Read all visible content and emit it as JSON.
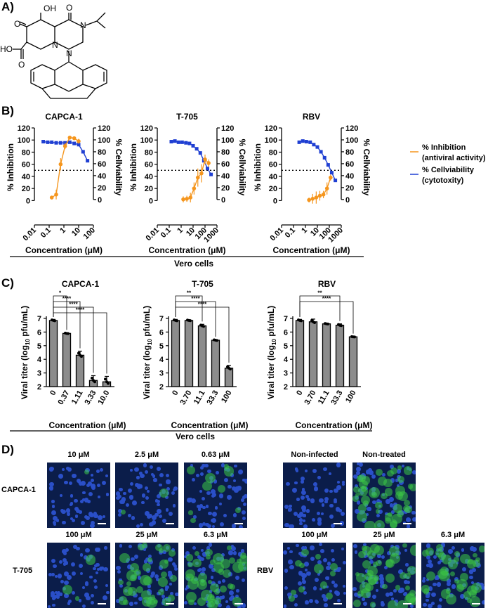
{
  "panels": {
    "a": "A)",
    "b": "B)",
    "c": "C)",
    "d": "D)"
  },
  "structure": {
    "labels": {
      "oh": "OH",
      "o_top": "O",
      "o_left": "O",
      "n_top": "N",
      "n_mid": "N",
      "n_bot": "N",
      "ho": "HO",
      "o_acid": "O"
    }
  },
  "colors": {
    "inhibition": "#F5961E",
    "viability": "#1F3FD2",
    "bar": "#8C8C8C"
  },
  "panel_b": {
    "legend": [
      {
        "line1": "% Inhibition",
        "line2": "(antiviral activity)",
        "color": "#F5961E"
      },
      {
        "line1": "% Cellviability",
        "line2": "(cytotoxity)",
        "color": "#1F3FD2"
      }
    ],
    "footer": "Vero cells"
  },
  "chart_data": [
    {
      "type": "scatter",
      "title": "CAPCA-1",
      "xlabel": "Concentration (μM)",
      "ylabel": "% Inhibition",
      "y2label": "% Cellviability",
      "x_scale": "log",
      "xlim": [
        0.01,
        100
      ],
      "ylim": [
        -10,
        120
      ],
      "y2lim": [
        -12,
        120
      ],
      "xticks": [
        "0.01",
        "0.1",
        "1",
        "10",
        "100"
      ],
      "yticks": [
        0,
        20,
        40,
        60,
        80,
        100,
        120
      ],
      "y2ticks": [
        0,
        20,
        40,
        60,
        80,
        100,
        120
      ],
      "reference_line": 50,
      "series": [
        {
          "name": "% Inhibition",
          "x": [
            0.15,
            0.3,
            0.6,
            1.2,
            2.5,
            5,
            10
          ],
          "y": [
            5,
            10,
            60,
            90,
            104,
            103,
            98
          ],
          "err": [
            2,
            8,
            10,
            5,
            3,
            3,
            4
          ]
        },
        {
          "name": "% Cellviability",
          "x": [
            0.04,
            0.08,
            0.15,
            0.3,
            0.6,
            1.2,
            2.5,
            5,
            10,
            20,
            40
          ],
          "y": [
            97,
            96,
            96,
            95,
            95,
            95,
            96,
            94,
            92,
            80,
            65
          ],
          "err": []
        }
      ]
    },
    {
      "type": "scatter",
      "title": "T-705",
      "xlabel": "Concentration (μM)",
      "ylabel": "% Inhibition",
      "y2label": "% Cellviability",
      "x_scale": "log",
      "xlim": [
        0.01,
        1000
      ],
      "ylim": [
        -10,
        120
      ],
      "y2lim": [
        -12,
        120
      ],
      "xticks": [
        "0.01",
        "0.1",
        "1",
        "10",
        "100",
        "1000"
      ],
      "yticks": [
        0,
        20,
        40,
        60,
        80,
        100,
        120
      ],
      "y2ticks": [
        0,
        20,
        40,
        60,
        80,
        100,
        120
      ],
      "reference_line": 50,
      "series": [
        {
          "name": "% Inhibition",
          "x": [
            1.5,
            3,
            6,
            12,
            25,
            50,
            100,
            200
          ],
          "y": [
            2,
            3,
            5,
            20,
            38,
            45,
            68,
            62
          ],
          "err": [
            5,
            5,
            8,
            10,
            15,
            15,
            8,
            6
          ]
        },
        {
          "name": "% Cellviability",
          "x": [
            0.15,
            0.3,
            0.6,
            1.2,
            2.5,
            5,
            10,
            20,
            40,
            80,
            160,
            320
          ],
          "y": [
            97,
            98,
            96,
            96,
            95,
            94,
            90,
            85,
            78,
            65,
            52,
            42
          ],
          "err": []
        }
      ]
    },
    {
      "type": "scatter",
      "title": "RBV",
      "xlabel": "Concentration (μM)",
      "ylabel": "% Inhibition",
      "y2label": "% Cellviability",
      "x_scale": "log",
      "xlim": [
        0.01,
        1000
      ],
      "ylim": [
        -10,
        120
      ],
      "y2lim": [
        -12,
        120
      ],
      "xticks": [
        "0.01",
        "0.1",
        "1",
        "10",
        "100",
        "1000"
      ],
      "yticks": [
        0,
        20,
        40,
        60,
        80,
        100,
        120
      ],
      "y2ticks": [
        0,
        20,
        40,
        60,
        80,
        100,
        120
      ],
      "reference_line": 50,
      "series": [
        {
          "name": "% Inhibition",
          "x": [
            2,
            4,
            8,
            16,
            32,
            64,
            128
          ],
          "y": [
            1,
            3,
            5,
            8,
            10,
            20,
            38
          ],
          "err": [
            4,
            8,
            10,
            8,
            6,
            10,
            5
          ]
        },
        {
          "name": "% Cellviability",
          "x": [
            0.3,
            0.6,
            1.2,
            2.5,
            5,
            10,
            20,
            40,
            80,
            160,
            320
          ],
          "y": [
            96,
            98,
            97,
            96,
            92,
            88,
            80,
            70,
            58,
            45,
            32
          ],
          "err": []
        }
      ]
    },
    {
      "type": "bar",
      "title": "CAPCA-1",
      "xlabel": "Concentration (μM)",
      "ylabel": "Viral titer (log10 pfu/mL)",
      "ylabel_parts": [
        "Viral titer (log",
        "10",
        " pfu/mL)"
      ],
      "categories": [
        "0",
        "0.37",
        "1.11",
        "3.33",
        "10.0"
      ],
      "values": [
        6.85,
        5.9,
        4.3,
        2.45,
        2.35
      ],
      "err": [
        0.08,
        0.05,
        0.3,
        0.35,
        0.4
      ],
      "ylim": [
        2,
        7
      ],
      "yticks": [
        2,
        3,
        4,
        5,
        6,
        7
      ],
      "significance": [
        {
          "from": 0,
          "to": 1,
          "label": "*"
        },
        {
          "from": 0,
          "to": 2,
          "label": "****"
        },
        {
          "from": 0,
          "to": 3,
          "label": "****"
        },
        {
          "from": 0,
          "to": 4,
          "label": "****"
        }
      ]
    },
    {
      "type": "bar",
      "title": "T-705",
      "xlabel": "Concentration (μM)",
      "ylabel": "Viral titer (log10 pfu/mL)",
      "ylabel_parts": [
        "Viral titer (log",
        "10",
        " pfu/mL)"
      ],
      "categories": [
        "0",
        "3.70",
        "11.1",
        "33.3",
        "100"
      ],
      "values": [
        6.85,
        6.85,
        6.45,
        5.4,
        3.35
      ],
      "err": [
        0.08,
        0.05,
        0.12,
        0.05,
        0.2
      ],
      "ylim": [
        2,
        7
      ],
      "yticks": [
        2,
        3,
        4,
        5,
        6,
        7
      ],
      "significance": [
        {
          "from": 0,
          "to": 2,
          "label": "**"
        },
        {
          "from": 0,
          "to": 3,
          "label": "****"
        },
        {
          "from": 0,
          "to": 4,
          "label": "****"
        }
      ]
    },
    {
      "type": "bar",
      "title": "RBV",
      "xlabel": "Concentration (μM)",
      "ylabel": "Viral titer (log10 pfu/mL)",
      "ylabel_parts": [
        "Viral titer (log",
        "10",
        " pfu/mL)"
      ],
      "categories": [
        "0",
        "3.70",
        "11.1",
        "33.3",
        "100"
      ],
      "values": [
        6.85,
        6.75,
        6.6,
        6.5,
        5.65
      ],
      "err": [
        0.08,
        0.2,
        0.05,
        0.1,
        0.03
      ],
      "ylim": [
        2,
        7
      ],
      "yticks": [
        2,
        3,
        4,
        5,
        6,
        7
      ],
      "significance": [
        {
          "from": 0,
          "to": 3,
          "label": "**"
        },
        {
          "from": 0,
          "to": 4,
          "label": "****"
        }
      ]
    }
  ],
  "panel_c": {
    "footer": "Vero cells"
  },
  "panel_d": {
    "row_labels": {
      "capca": "CAPCA-1",
      "t705": "T-705",
      "rbv": "RBV"
    },
    "images": [
      {
        "label": "10 μM",
        "green": 0.02
      },
      {
        "label": "2.5 μM",
        "green": 0.03
      },
      {
        "label": "0.63 μM",
        "green": 0.15
      },
      {
        "label": "Non-infected",
        "green": 0.0
      },
      {
        "label": "Non-treated",
        "green": 0.75
      },
      {
        "label": "100 μM",
        "green": 0.05
      },
      {
        "label": "25 μM",
        "green": 0.6
      },
      {
        "label": "6.3 μM",
        "green": 0.7
      },
      {
        "label": "100 μM",
        "green": 0.2
      },
      {
        "label": "25 μM",
        "green": 0.7
      },
      {
        "label": "6.3 μM",
        "green": 0.6
      }
    ]
  }
}
